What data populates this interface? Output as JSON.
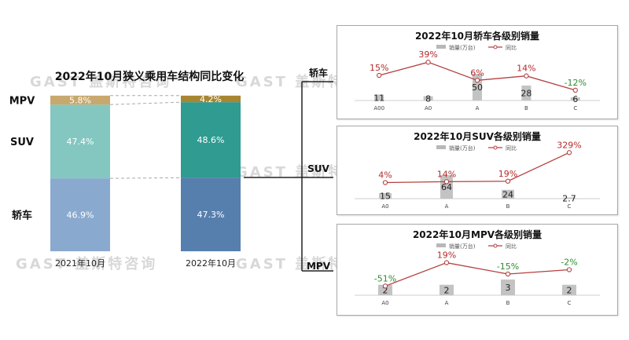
{
  "main": {
    "title": "2022年10月狭义乘用车结构同比变化",
    "columns": [
      "2021年10月",
      "2022年10月"
    ],
    "segments": [
      "轿车",
      "SUV",
      "MPV"
    ],
    "colors": {
      "2021年10月": {
        "轿车": "#8aa9cf",
        "SUV": "#83c7c0",
        "MPV": "#c7a86d"
      },
      "2022年10月": {
        "轿车": "#577fae",
        "SUV": "#2f9b91",
        "MPV": "#a88530"
      }
    }
  },
  "watermark": "GAST 盖斯特咨询",
  "chart_data": [
    {
      "type": "bar",
      "title": "2022年10月狭义乘用车结构同比变化",
      "stacked": true,
      "percent": true,
      "categories": [
        "2021年10月",
        "2022年10月"
      ],
      "series": [
        {
          "name": "轿车",
          "values": [
            46.9,
            47.3
          ]
        },
        {
          "name": "SUV",
          "values": [
            47.4,
            48.6
          ]
        },
        {
          "name": "MPV",
          "values": [
            5.8,
            4.2
          ]
        }
      ]
    },
    {
      "type": "bar",
      "side_label": "轿车",
      "title": "2022年10月轿车各级别销量",
      "legend_position": "top",
      "categories": [
        "A00",
        "A0",
        "A",
        "B",
        "C"
      ],
      "series": [
        {
          "name": "销量(万台)",
          "type": "bar",
          "values": [
            11,
            8,
            50,
            28,
            6
          ]
        },
        {
          "name": "同比",
          "type": "line",
          "values": [
            15,
            39,
            6,
            14,
            -12
          ]
        }
      ]
    },
    {
      "type": "bar",
      "side_label": "SUV",
      "title": "2022年10月SUV各级别销量",
      "legend_position": "top",
      "categories": [
        "A0",
        "A",
        "B",
        "C"
      ],
      "series": [
        {
          "name": "销量(万台)",
          "type": "bar",
          "values": [
            15,
            64,
            24,
            2.7
          ]
        },
        {
          "name": "同比",
          "type": "line",
          "values": [
            4,
            14,
            19,
            329
          ]
        }
      ]
    },
    {
      "type": "bar",
      "side_label": "MPV",
      "title": "2022年10月MPV各级别销量",
      "legend_position": "top",
      "categories": [
        "A0",
        "A",
        "B",
        "C"
      ],
      "series": [
        {
          "name": "销量(万台)",
          "type": "bar",
          "values": [
            2,
            2,
            3,
            2
          ]
        },
        {
          "name": "同比",
          "type": "line",
          "values": [
            -51,
            19,
            -15,
            -2
          ]
        }
      ]
    }
  ]
}
